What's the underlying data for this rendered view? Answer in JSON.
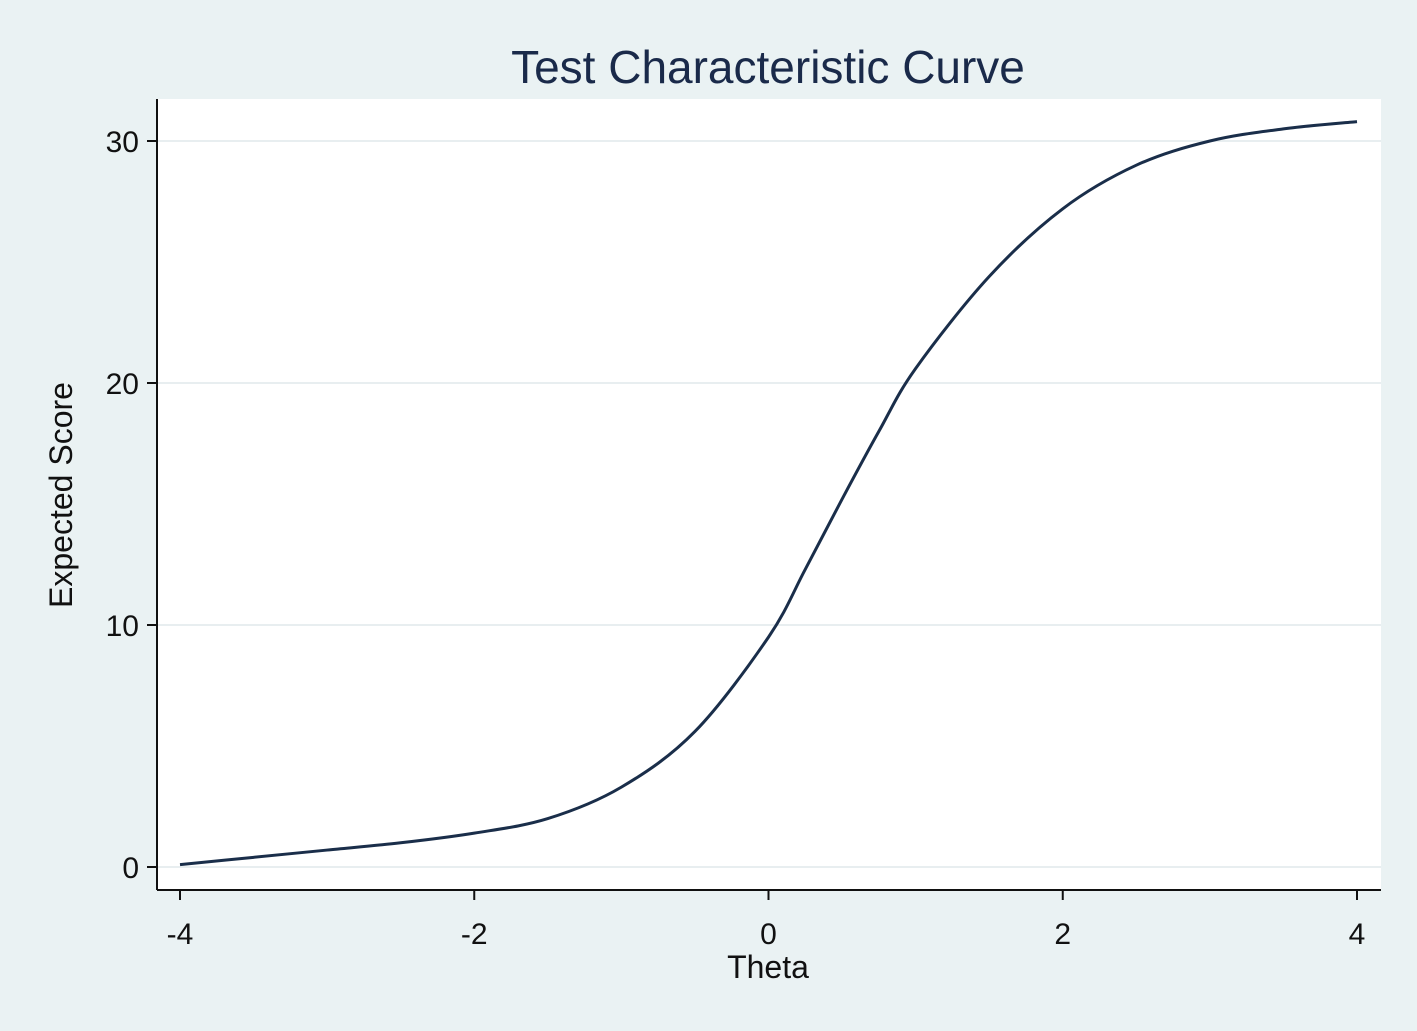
{
  "chart_data": {
    "type": "line",
    "title": "Test Characteristic Curve",
    "xlabel": "Theta",
    "ylabel": "Expected Score",
    "xlim": [
      -4,
      4
    ],
    "ylim": [
      0,
      31
    ],
    "x_ticks": [
      -4,
      -2,
      0,
      2,
      4
    ],
    "y_ticks": [
      0,
      10,
      20,
      30
    ],
    "grid": true,
    "legend": "none",
    "series": [
      {
        "x": [
          -4,
          -3.5,
          -3,
          -2.5,
          -2,
          -1.5,
          -1,
          -0.5,
          0,
          0.25,
          0.5,
          0.75,
          1,
          1.5,
          2,
          2.5,
          3,
          3.5,
          4
        ],
        "y": [
          0.1,
          0.4,
          0.7,
          1.0,
          1.4,
          2.0,
          3.3,
          5.6,
          9.5,
          12.3,
          15.2,
          18.0,
          20.6,
          24.4,
          27.2,
          29.0,
          30.0,
          30.5,
          30.8
        ]
      }
    ],
    "colors": {
      "background": "#eaf2f3",
      "plot_area": "#ffffff",
      "line": "#1a2e4a",
      "grid": "#e8eef0",
      "axis": "#111111"
    }
  }
}
